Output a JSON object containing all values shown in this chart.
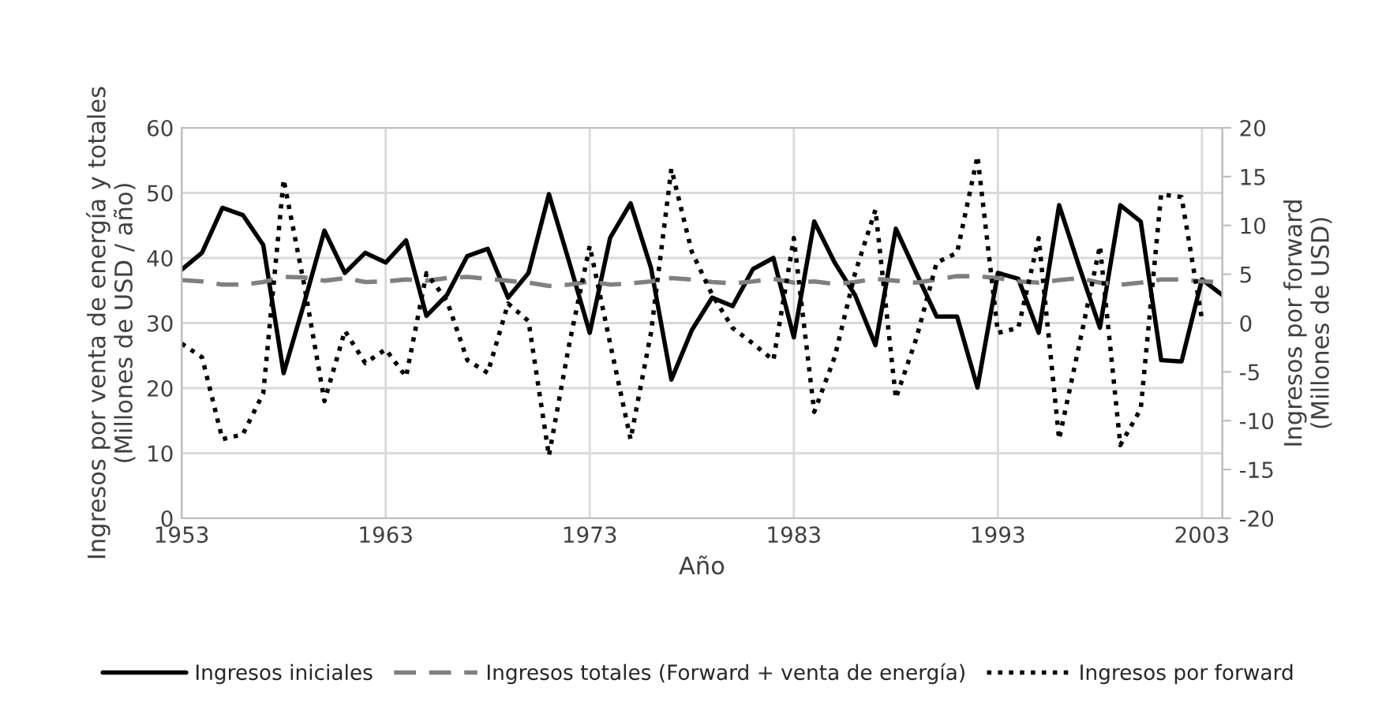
{
  "chart_data": {
    "type": "line",
    "xlabel": "Año",
    "ylabel": "Ingresos por venta de energía y totales\n(Millones de USD / año)",
    "y2label": "Ingresos por forward\n(Millones de USD)",
    "x": [
      1953,
      1954,
      1955,
      1956,
      1957,
      1958,
      1959,
      1960,
      1961,
      1962,
      1963,
      1964,
      1965,
      1966,
      1967,
      1968,
      1969,
      1970,
      1971,
      1972,
      1973,
      1974,
      1975,
      1976,
      1977,
      1978,
      1979,
      1980,
      1981,
      1982,
      1983,
      1984,
      1985,
      1986,
      1987,
      1988,
      1989,
      1990,
      1991,
      1992,
      1993,
      1994,
      1995,
      1996,
      1997,
      1998,
      1999,
      2000,
      2001,
      2002,
      2003,
      2004
    ],
    "series": [
      {
        "name": "Ingresos iniciales",
        "color": "#000000",
        "line_style": "solid",
        "values": [
          38.2,
          40.8,
          47.7,
          46.6,
          42,
          22.3,
          33,
          44.2,
          37.7,
          40.8,
          39.3,
          42.7,
          31.1,
          34.3,
          40.3,
          41.4,
          33.9,
          37.7,
          49.8,
          39.3,
          28.5,
          43.1,
          48.4,
          38.5,
          21.3,
          28.9,
          33.9,
          32.6,
          38.3,
          40,
          27.8,
          45.6,
          39.3,
          34.3,
          26.6,
          44.5,
          37.7,
          31,
          31,
          20.1,
          37.7,
          36.8,
          28.5,
          48.1,
          38.5,
          29.3,
          48.1,
          45.6,
          24.3,
          24.1,
          36.7,
          34.3
        ]
      },
      {
        "name": "Ingresos totales (Forward + venta de energía)",
        "color": "#808080",
        "line_style": "dashed",
        "values": [
          36.6,
          36.4,
          35.9,
          35.9,
          36.3,
          37.1,
          37,
          36.5,
          36.9,
          36.3,
          36.4,
          36.7,
          36.5,
          36.9,
          37.1,
          36.8,
          36.5,
          36.2,
          35.7,
          35.9,
          36.4,
          35.9,
          36.1,
          36.4,
          36.9,
          36.7,
          36.3,
          36.1,
          36.4,
          36.8,
          36.2,
          36.4,
          36,
          36.3,
          36.8,
          36.5,
          36.2,
          36.7,
          37.2,
          37.2,
          36.9,
          36.4,
          36.2,
          36.6,
          36.9,
          36.2,
          35.9,
          36.2,
          36.7,
          36.7,
          36.4,
          36.3
        ]
      },
      {
        "name": "Ingresos por forward",
        "color": "#000000",
        "line_style": "dotted",
        "axis": "y2",
        "values": [
          -2.1,
          -3.5,
          -11.9,
          -11.4,
          -7.2,
          14.7,
          4,
          -8,
          -0.8,
          -4.1,
          -2.7,
          -5.5,
          5.1,
          2.3,
          -3.8,
          -5.1,
          2,
          0.2,
          -13.6,
          -2.1,
          7.9,
          -2.1,
          -11.9,
          -1,
          15.8,
          7.3,
          2.9,
          -0.5,
          -2.1,
          -3.8,
          8.7,
          -9.1,
          -3.5,
          5.1,
          11.6,
          -7.7,
          -1.6,
          6.2,
          7.2,
          17.1,
          -1,
          -0.5,
          8.7,
          -11.9,
          -2.1,
          7.9,
          -12.5,
          -8.8,
          13.2,
          12.9,
          0.4,
          null
        ]
      }
    ],
    "xlim": [
      1953,
      2004
    ],
    "xticks": [
      1953,
      1963,
      1973,
      1983,
      1993,
      2003
    ],
    "ylim": [
      0,
      60
    ],
    "yticks": [
      0,
      10,
      20,
      30,
      40,
      50,
      60
    ],
    "y2lim": [
      -20,
      20
    ],
    "y2ticks": [
      -20,
      -15,
      -10,
      -5,
      0,
      5,
      10,
      15,
      20
    ],
    "grid": true,
    "legend": "bottom",
    "marker": "none"
  }
}
